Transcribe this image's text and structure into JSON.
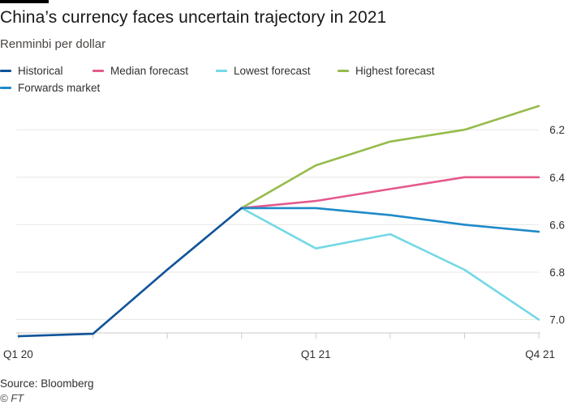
{
  "title": "China’s currency faces uncertain trajectory in 2021",
  "subtitle": "Renminbi per dollar",
  "source": "Source: Bloomberg",
  "credit": "© FT",
  "chart_data": {
    "type": "line",
    "title": "China’s currency faces uncertain trajectory in 2021",
    "ylabel": "Renminbi per dollar",
    "xlabel": "",
    "y_inverted": true,
    "ylim": [
      7.08,
      6.08
    ],
    "yticks": [
      6.2,
      6.4,
      6.6,
      6.8,
      7.0
    ],
    "ytick_labels": [
      "6.2",
      "6.4",
      "6.6",
      "6.8",
      "7.0"
    ],
    "x_index_range": [
      0,
      7
    ],
    "xticks": [
      0,
      4,
      7
    ],
    "xtick_labels": [
      "Q1 20",
      "Q1 21",
      "Q4 21"
    ],
    "gridlines": true,
    "legend_position": "top-left",
    "series": [
      {
        "name": "Historical",
        "color": "#0f5499",
        "x": [
          0,
          1,
          2,
          3
        ],
        "values": [
          7.07,
          7.06,
          6.79,
          6.53
        ]
      },
      {
        "name": "Median forecast",
        "color": "#e45a8d",
        "x": [
          3,
          4,
          5,
          6,
          7
        ],
        "values": [
          6.53,
          6.5,
          6.45,
          6.4,
          6.4
        ]
      },
      {
        "name": "Lowest forecast",
        "color": "#73d8e5",
        "x": [
          3,
          4,
          5,
          6,
          7
        ],
        "values": [
          6.53,
          6.7,
          6.64,
          6.79,
          7.0
        ]
      },
      {
        "name": "Highest forecast",
        "color": "#96bb4c",
        "x": [
          3,
          4,
          5,
          6,
          7
        ],
        "values": [
          6.53,
          6.35,
          6.25,
          6.2,
          6.1
        ]
      },
      {
        "name": "Forwards market",
        "color": "#1f8ac9",
        "x": [
          3,
          4,
          5,
          6,
          7
        ],
        "values": [
          6.53,
          6.53,
          6.56,
          6.6,
          6.63
        ]
      }
    ]
  }
}
